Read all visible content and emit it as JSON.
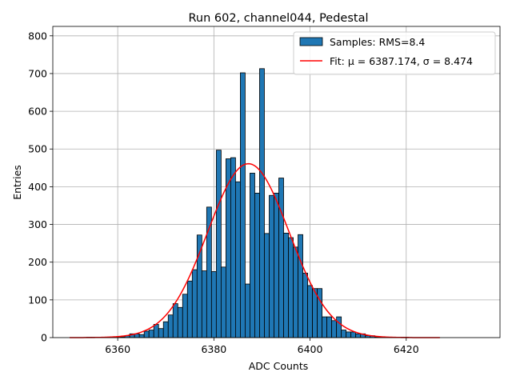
{
  "chart_data": {
    "type": "bar",
    "title": "Run 602, channel044, Pedestal",
    "xlabel": "ADC Counts",
    "ylabel": "Entries",
    "xlim": [
      6346.5,
      6439.5
    ],
    "ylim": [
      0,
      825
    ],
    "xticks": [
      6360,
      6380,
      6400,
      6420
    ],
    "yticks": [
      0,
      100,
      200,
      300,
      400,
      500,
      600,
      700,
      800
    ],
    "grid": true,
    "legend_position": "top-right",
    "legend": {
      "samples": "Samples: RMS=8.4",
      "fit": "Fit: μ = 6387.174, σ = 8.474"
    },
    "colors": {
      "bars": "#1f77b4",
      "bar_edge": "#000000",
      "fit": "#ff0000",
      "grid": "#b0b0b0"
    },
    "bin_width": 1,
    "series": [
      {
        "name": "Samples: RMS=8.4",
        "bins": [
          6354,
          6355,
          6356,
          6357,
          6358,
          6359,
          6360,
          6361,
          6362,
          6363,
          6364,
          6365,
          6366,
          6367,
          6368,
          6369,
          6370,
          6371,
          6372,
          6373,
          6374,
          6375,
          6376,
          6377,
          6378,
          6379,
          6380,
          6381,
          6382,
          6383,
          6384,
          6385,
          6386,
          6387,
          6388,
          6389,
          6390,
          6391,
          6392,
          6393,
          6394,
          6395,
          6396,
          6397,
          6398,
          6399,
          6400,
          6401,
          6402,
          6403,
          6404,
          6405,
          6406,
          6407,
          6408,
          6409,
          6410,
          6411,
          6412,
          6413,
          6414,
          6415,
          6416,
          6417,
          6418,
          6419,
          6420,
          6421,
          6422,
          6423,
          6424
        ],
        "values": [
          1,
          1,
          1,
          1,
          1,
          1,
          1,
          2,
          5,
          10,
          10,
          8,
          17,
          20,
          35,
          24,
          42,
          60,
          90,
          80,
          115,
          150,
          180,
          272,
          177,
          346,
          175,
          497,
          187,
          474,
          477,
          413,
          702,
          142,
          436,
          383,
          713,
          276,
          377,
          383,
          423,
          277,
          265,
          240,
          273,
          171,
          138,
          130,
          130,
          55,
          55,
          45,
          55,
          20,
          15,
          15,
          10,
          10,
          5,
          5,
          2,
          2,
          1,
          1,
          1,
          1,
          1,
          0,
          0,
          0,
          0
        ]
      }
    ],
    "fit": {
      "name": "Fit: μ = 6387.174, σ = 8.474",
      "mu": 6387.174,
      "sigma": 8.474,
      "amplitude": 461,
      "x_range": [
        6350,
        6427
      ]
    }
  }
}
